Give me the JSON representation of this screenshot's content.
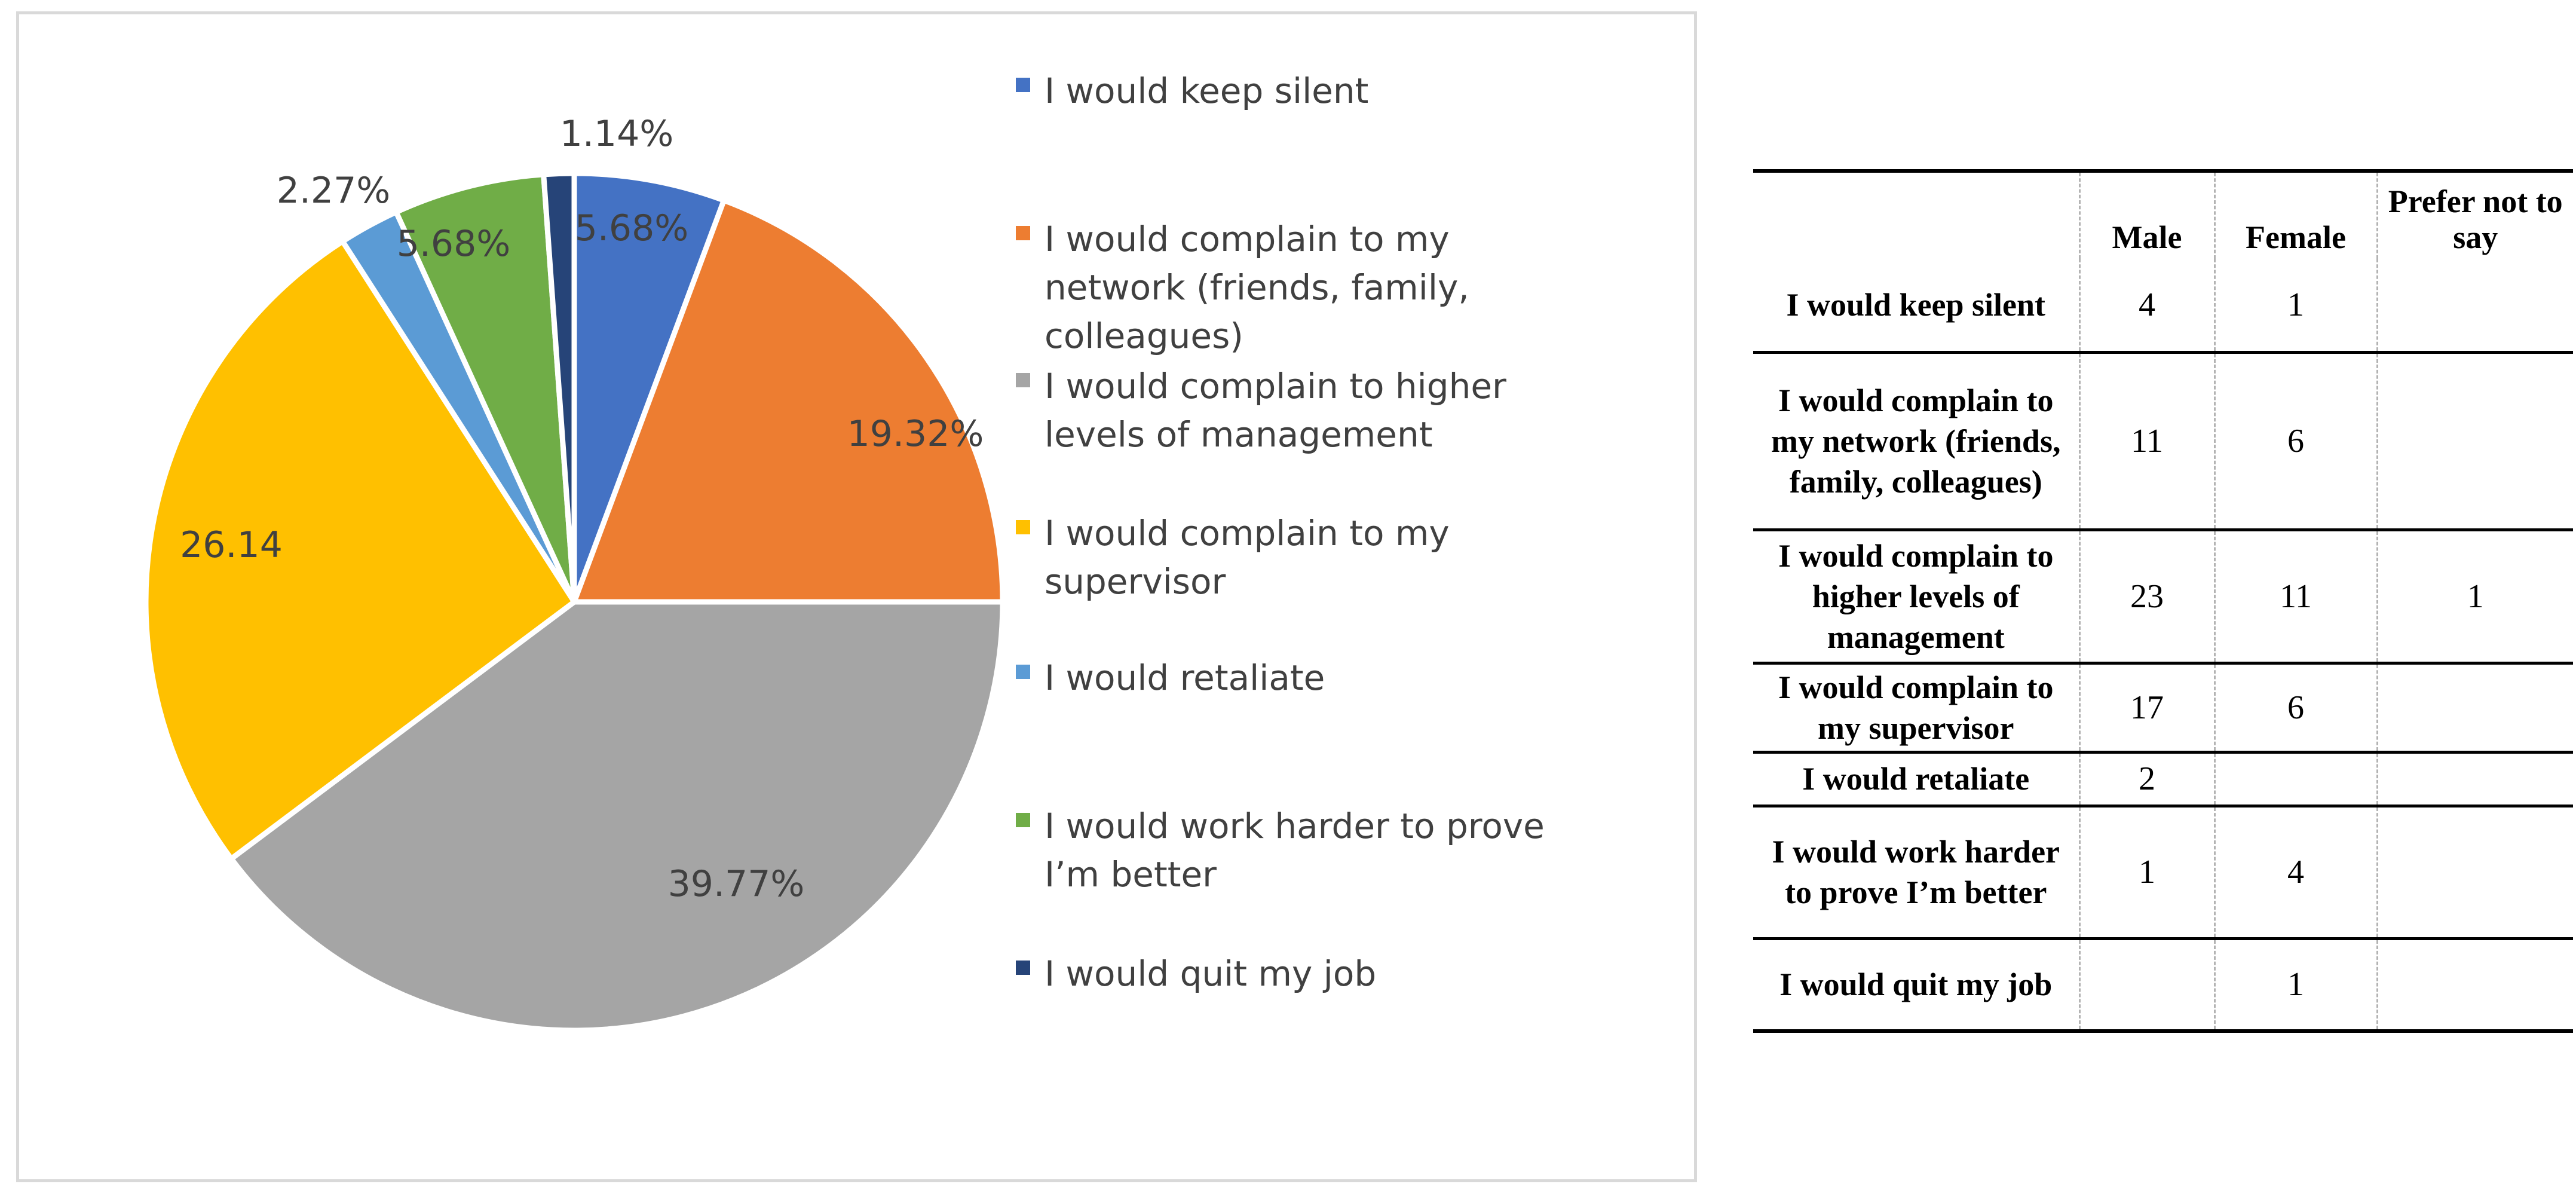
{
  "chart_data": {
    "type": "pie",
    "title": "",
    "start_angle_deg": 0,
    "direction": "clockwise",
    "legend_position": "right",
    "slices": [
      {
        "label": "I would keep silent",
        "value": 5.68,
        "data_label": "5.68%",
        "color": "#4472C4"
      },
      {
        "label": "I would complain to my network (friends, family, colleagues)",
        "value": 19.32,
        "data_label": "19.32%",
        "color": "#ED7D31"
      },
      {
        "label": "I would complain to higher levels of management",
        "value": 39.77,
        "data_label": "39.77%",
        "color": "#A5A5A5"
      },
      {
        "label": "I would complain to my supervisor",
        "value": 26.14,
        "data_label": "26.14",
        "color": "#FFC000"
      },
      {
        "label": "I would retaliate",
        "value": 2.27,
        "data_label": "2.27%",
        "color": "#5B9BD5"
      },
      {
        "label": "I would work harder to prove I’m better",
        "value": 5.68,
        "data_label": "5.68%",
        "color": "#70AD47"
      },
      {
        "label": "I would quit my job",
        "value": 1.14,
        "data_label": "1.14%",
        "color": "#264478"
      }
    ],
    "legend": [
      "I would keep silent",
      "I would complain to my\nnetwork (friends, family,\ncolleagues)",
      "I would complain to higher\nlevels of management",
      "I would complain to my\nsupervisor",
      "I would retaliate",
      "I would work harder to prove\nI’m better",
      "I would quit my job"
    ]
  },
  "table": {
    "headers": [
      "",
      "Male",
      "Female",
      "Prefer not to say"
    ],
    "rows": [
      {
        "label": "I would keep silent",
        "male": "4",
        "female": "1",
        "prefer": ""
      },
      {
        "label": "I would complain to my network (friends, family, colleagues)",
        "male": "11",
        "female": "6",
        "prefer": ""
      },
      {
        "label": "I would complain to higher levels of management",
        "male": "23",
        "female": "11",
        "prefer": "1"
      },
      {
        "label": "I would complain to my supervisor",
        "male": "17",
        "female": "6",
        "prefer": ""
      },
      {
        "label": "I would retaliate",
        "male": "2",
        "female": "",
        "prefer": ""
      },
      {
        "label": "I would work harder to prove I’m better",
        "male": "1",
        "female": "4",
        "prefer": ""
      },
      {
        "label": "I would quit my job",
        "male": "",
        "female": "1",
        "prefer": ""
      }
    ]
  }
}
